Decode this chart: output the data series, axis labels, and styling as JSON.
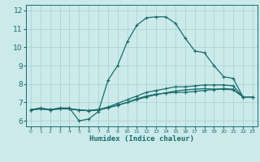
{
  "title": "",
  "xlabel": "Humidex (Indice chaleur)",
  "bg_color": "#cceaea",
  "line_color": "#1a6b6b",
  "grid_color": "#aad4d4",
  "xlim": [
    -0.5,
    23.5
  ],
  "ylim": [
    5.7,
    12.3
  ],
  "yticks": [
    6,
    7,
    8,
    9,
    10,
    11,
    12
  ],
  "xticks": [
    0,
    1,
    2,
    3,
    4,
    5,
    6,
    7,
    8,
    9,
    10,
    11,
    12,
    13,
    14,
    15,
    16,
    17,
    18,
    19,
    20,
    21,
    22,
    23
  ],
  "series": [
    {
      "x": [
        0,
        1,
        2,
        3,
        4,
        5,
        6,
        7,
        8,
        9,
        10,
        11,
        12,
        13,
        14,
        15,
        16,
        17,
        18,
        19,
        20,
        21,
        22,
        23
      ],
      "y": [
        6.6,
        6.7,
        6.6,
        6.7,
        6.7,
        6.0,
        6.1,
        6.5,
        8.2,
        9.0,
        10.3,
        11.2,
        11.6,
        11.65,
        11.65,
        11.3,
        10.5,
        9.8,
        9.7,
        9.0,
        8.4,
        8.3,
        7.3,
        7.3
      ]
    },
    {
      "x": [
        0,
        1,
        2,
        3,
        4,
        5,
        6,
        7,
        8,
        9,
        10,
        11,
        12,
        13,
        14,
        15,
        16,
        17,
        18,
        19,
        20,
        21,
        22,
        23
      ],
      "y": [
        6.6,
        6.68,
        6.62,
        6.68,
        6.65,
        6.58,
        6.56,
        6.62,
        6.72,
        6.85,
        7.0,
        7.15,
        7.3,
        7.42,
        7.52,
        7.62,
        7.68,
        7.72,
        7.75,
        7.72,
        7.72,
        7.68,
        7.3,
        7.3
      ]
    },
    {
      "x": [
        0,
        1,
        2,
        3,
        4,
        5,
        6,
        7,
        8,
        9,
        10,
        11,
        12,
        13,
        14,
        15,
        16,
        17,
        18,
        19,
        20,
        21,
        22,
        23
      ],
      "y": [
        6.6,
        6.65,
        6.6,
        6.65,
        6.65,
        6.6,
        6.55,
        6.6,
        6.75,
        6.95,
        7.15,
        7.35,
        7.55,
        7.65,
        7.75,
        7.85,
        7.85,
        7.9,
        7.95,
        7.95,
        7.95,
        7.9,
        7.3,
        7.3
      ]
    },
    {
      "x": [
        0,
        1,
        2,
        3,
        4,
        5,
        6,
        7,
        8,
        9,
        10,
        11,
        12,
        13,
        14,
        15,
        16,
        17,
        18,
        19,
        20,
        21,
        22,
        23
      ],
      "y": [
        6.6,
        6.65,
        6.6,
        6.65,
        6.65,
        6.58,
        6.55,
        6.58,
        6.7,
        6.85,
        7.0,
        7.2,
        7.35,
        7.45,
        7.5,
        7.55,
        7.55,
        7.6,
        7.65,
        7.7,
        7.75,
        7.72,
        7.3,
        7.3
      ]
    }
  ]
}
